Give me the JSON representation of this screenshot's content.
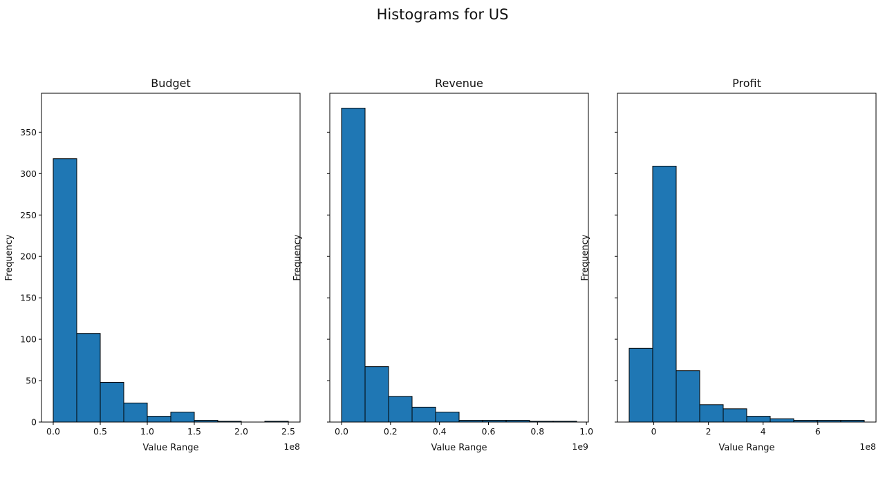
{
  "suptitle": "Histograms for US",
  "colors": {
    "bar_fill": "#1f77b4",
    "bar_edge": "#000000",
    "axis": "#000000"
  },
  "chart_data": [
    {
      "type": "bar",
      "title": "Budget",
      "xlabel": "Value Range",
      "ylabel": "Frequency",
      "x_offset_label": "1e8",
      "bin_edges": [
        0,
        0.25,
        0.5,
        0.75,
        1.0,
        1.25,
        1.5,
        1.75,
        2.0,
        2.25,
        2.5
      ],
      "values": [
        318,
        107,
        48,
        23,
        7,
        12,
        2,
        1,
        0,
        1
      ],
      "xlim": [
        -0.125,
        2.625
      ],
      "xticks": [
        0.0,
        0.5,
        1.0,
        1.5,
        2.0,
        2.5
      ],
      "xtick_labels": [
        "0.0",
        "0.5",
        "1.0",
        "1.5",
        "2.0",
        "2.5"
      ],
      "ylim": [
        0,
        397
      ],
      "yticks": [
        0,
        50,
        100,
        150,
        200,
        250,
        300,
        350
      ],
      "ytick_labels": [
        "0",
        "50",
        "100",
        "150",
        "200",
        "250",
        "300",
        "350"
      ],
      "grid": false
    },
    {
      "type": "bar",
      "title": "Revenue",
      "xlabel": "Value Range",
      "ylabel": "Frequency",
      "x_offset_label": "1e9",
      "bin_edges": [
        0,
        0.096,
        0.192,
        0.288,
        0.384,
        0.48,
        0.576,
        0.672,
        0.768,
        0.864,
        0.96
      ],
      "values": [
        379,
        67,
        31,
        18,
        12,
        2,
        2,
        2,
        1,
        1
      ],
      "xlim": [
        -0.048,
        1.008
      ],
      "xticks": [
        0.0,
        0.2,
        0.4,
        0.6,
        0.8,
        1.0
      ],
      "xtick_labels": [
        "0.0",
        "0.2",
        "0.4",
        "0.6",
        "0.8",
        "1.0"
      ],
      "ylim": [
        0,
        397
      ],
      "yticks": [
        0,
        50,
        100,
        150,
        200,
        250,
        300,
        350
      ],
      "ytick_labels": [],
      "grid": false
    },
    {
      "type": "bar",
      "title": "Profit",
      "xlabel": "Value Range",
      "ylabel": "Frequency",
      "x_offset_label": "1e8",
      "bin_edges": [
        -0.9,
        -0.04,
        0.82,
        1.68,
        2.54,
        3.4,
        4.26,
        5.12,
        5.98,
        6.84,
        7.7
      ],
      "values": [
        89,
        309,
        62,
        21,
        16,
        7,
        4,
        2,
        2,
        2
      ],
      "xlim": [
        -1.33,
        8.13
      ],
      "xticks": [
        0,
        2,
        4,
        6
      ],
      "xtick_labels": [
        "0",
        "2",
        "4",
        "6"
      ],
      "ylim": [
        0,
        397
      ],
      "yticks": [
        0,
        50,
        100,
        150,
        200,
        250,
        300,
        350
      ],
      "ytick_labels": [],
      "grid": false
    }
  ]
}
